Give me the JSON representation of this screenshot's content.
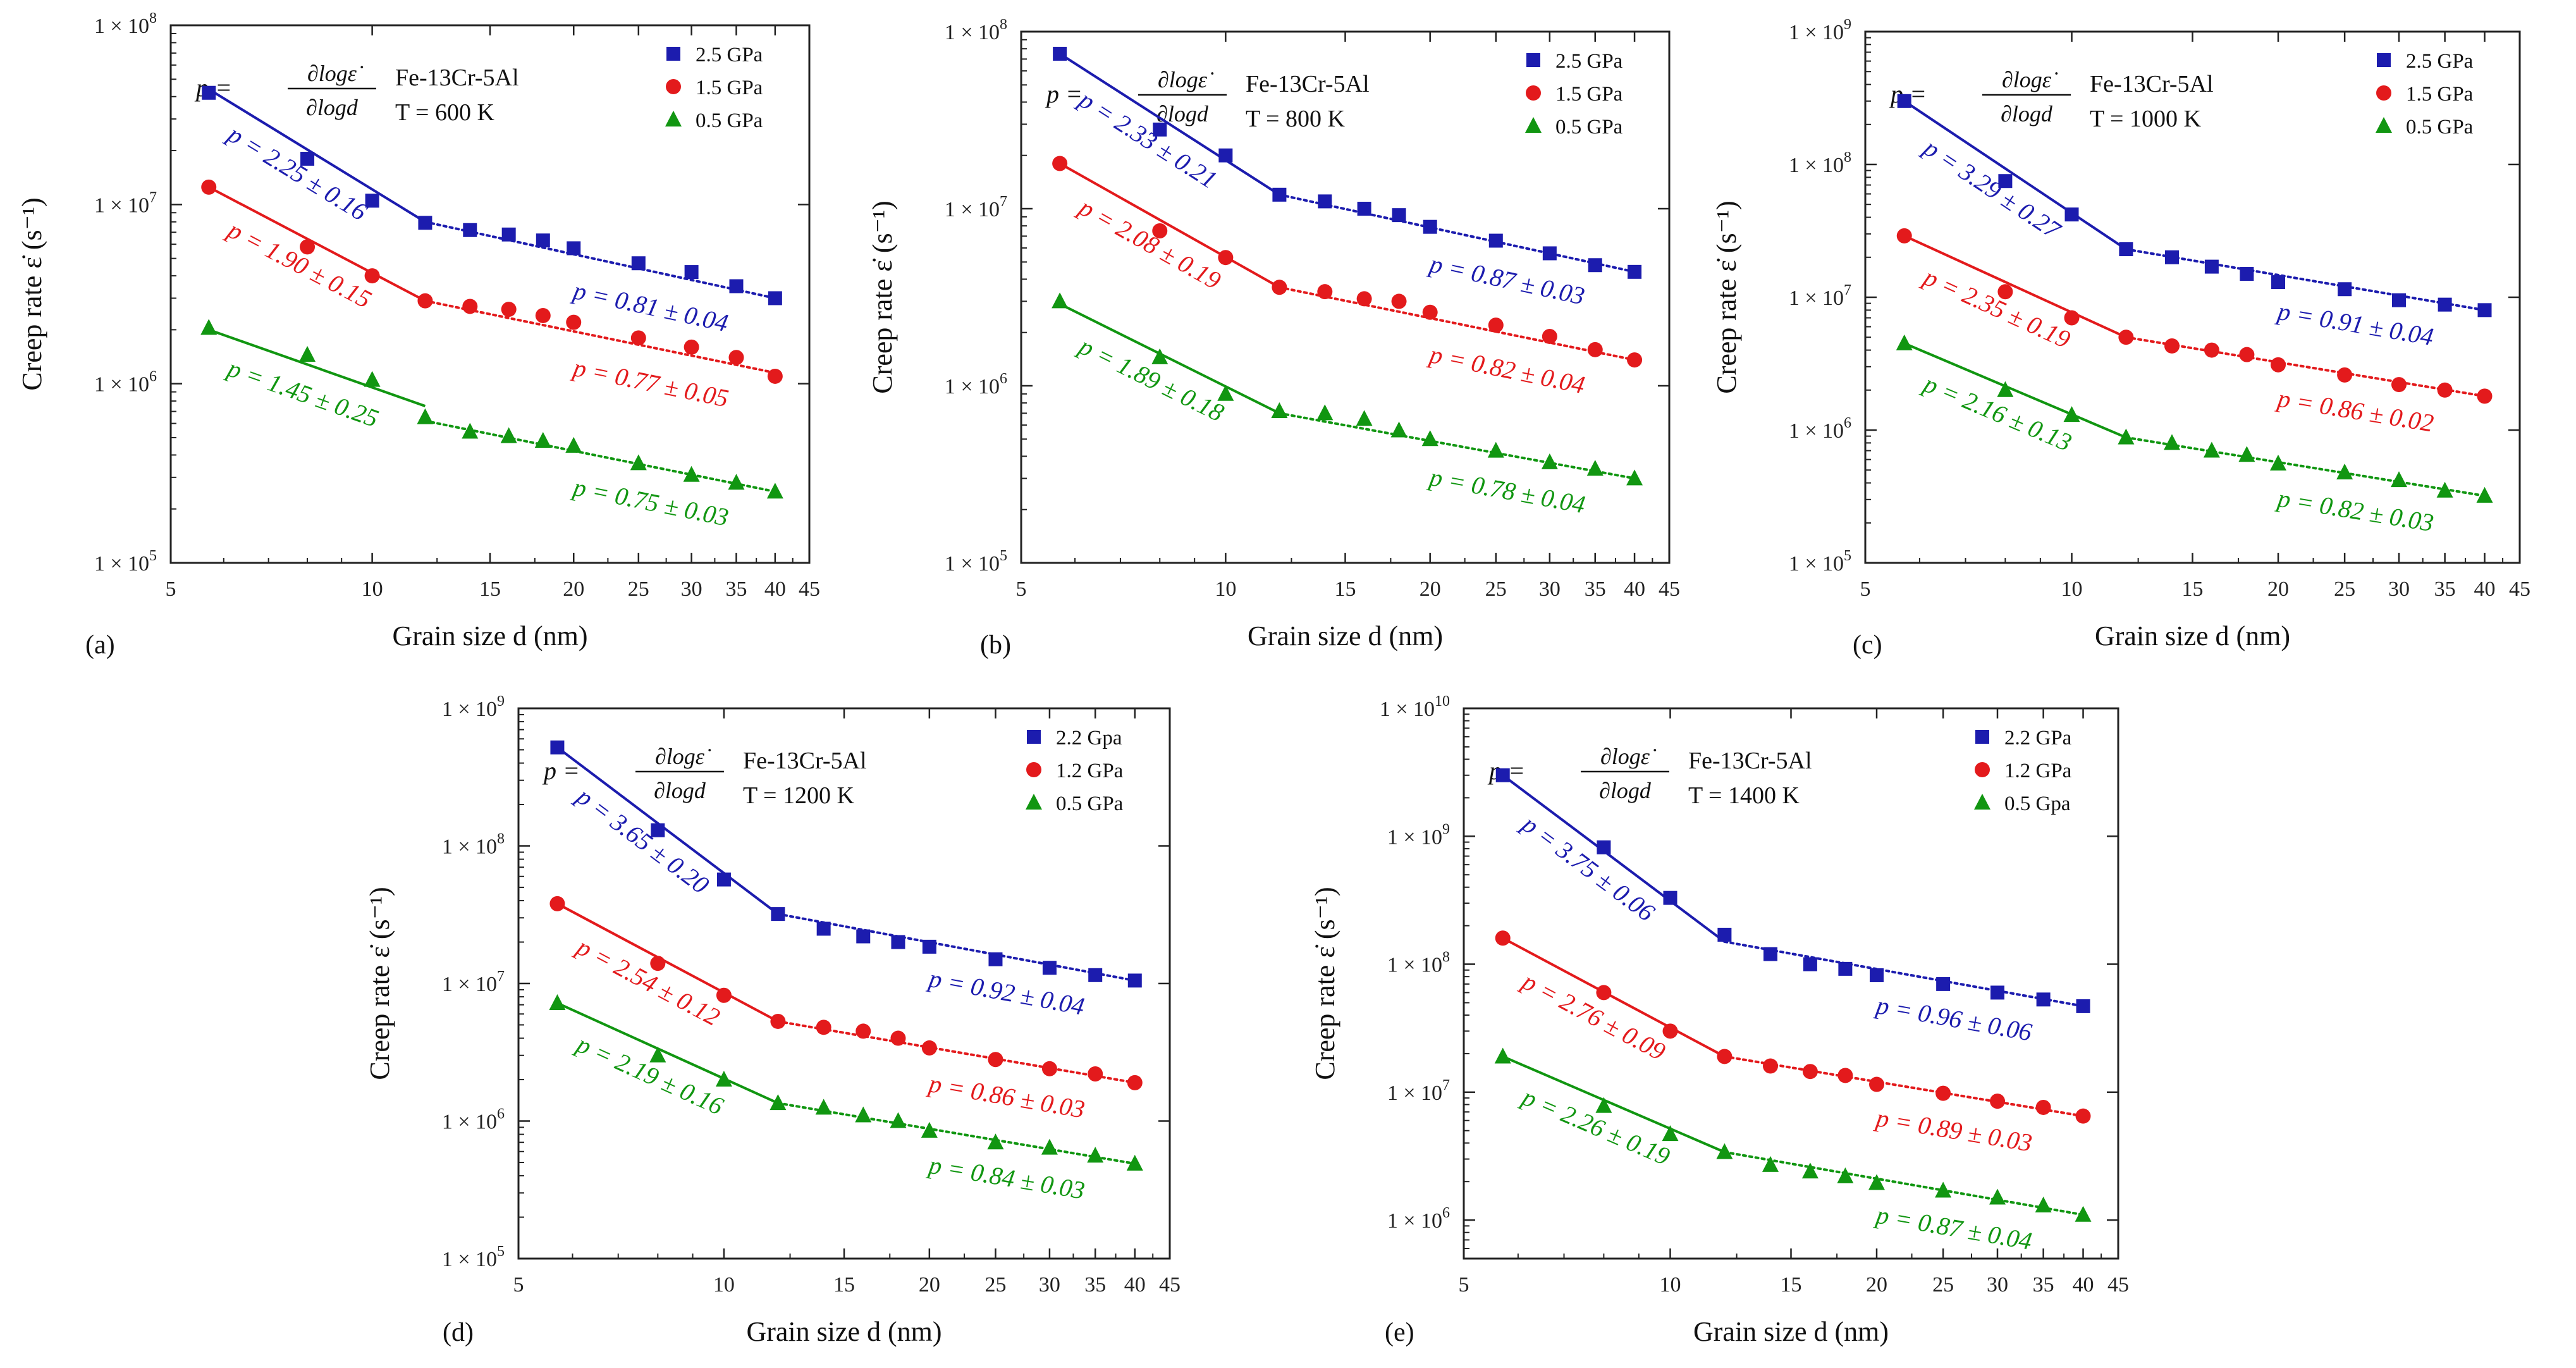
{
  "figure": {
    "x_tick_labels": [
      "5",
      "10",
      "15",
      "20",
      "25",
      "30",
      "35",
      "40",
      "45"
    ],
    "formula": {
      "lhs": "p =",
      "numerator": "∂logε̇",
      "denominator": "∂logd"
    }
  },
  "chart_data": [
    {
      "id": "a",
      "panel_label": "(a)",
      "type": "scatter",
      "xscale": "log",
      "yscale": "log",
      "xlabel": "Grain size d (nm)",
      "ylabel": "Creep rate ε̇ (s⁻¹)",
      "xlim": [
        5,
        45
      ],
      "ylim": [
        100000,
        100000000
      ],
      "y_tick_labels": [
        {
          "value": 100000,
          "exp": "5"
        },
        {
          "value": 1000000,
          "exp": "6"
        },
        {
          "value": 10000000,
          "exp": "7"
        },
        {
          "value": 100000000,
          "exp": "8"
        }
      ],
      "material": "Fe-13Cr-5Al",
      "temperature": "T = 600 K",
      "x": [
        5.7,
        8,
        10,
        12,
        14,
        16,
        18,
        20,
        25,
        30,
        35,
        40
      ],
      "series": [
        {
          "name": "2.5 GPa",
          "legend": "2.5 GPa",
          "marker": "square",
          "color": "#1c1cae",
          "values": [
            42000000,
            18000000,
            10500000,
            7900000,
            7200000,
            6800000,
            6300000,
            5700000,
            4700000,
            4200000,
            3500000,
            3000000
          ],
          "fit_steep": {
            "x": [
              5.7,
              12
            ],
            "y": [
              44000000,
              8000000
            ],
            "label": "p = 2.25 ± 0.16"
          },
          "fit_shallow": {
            "x": [
              12,
              40
            ],
            "y": [
              8000000,
              3000000
            ],
            "label": "p = 0.81 ± 0.04"
          }
        },
        {
          "name": "1.5 GPa",
          "legend": "1.5 GPa",
          "marker": "circle",
          "color": "#e31a1c",
          "values": [
            12500000,
            5800000,
            4000000,
            2900000,
            2700000,
            2600000,
            2400000,
            2200000,
            1800000,
            1600000,
            1400000,
            1100000
          ],
          "fit_steep": {
            "x": [
              5.7,
              12
            ],
            "y": [
              12500000,
              2900000
            ],
            "label": "p = 1.90 ± 0.15"
          },
          "fit_shallow": {
            "x": [
              12,
              40
            ],
            "y": [
              2900000,
              1150000
            ],
            "label": "p = 0.77 ± 0.05"
          }
        },
        {
          "name": "0.5 GPa",
          "legend": "0.5 GPa",
          "marker": "triangle",
          "color": "#119611",
          "values": [
            2050000,
            1450000,
            1050000,
            650000,
            540000,
            510000,
            480000,
            450000,
            360000,
            310000,
            280000,
            250000
          ],
          "fit_steep": {
            "x": [
              5.7,
              12
            ],
            "y": [
              2000000,
              750000
            ],
            "label": "p = 1.45 ± 0.25"
          },
          "fit_shallow": {
            "x": [
              12,
              40
            ],
            "y": [
              620000,
              250000
            ],
            "label": "p = 0.75 ± 0.03"
          }
        }
      ]
    },
    {
      "id": "b",
      "panel_label": "(b)",
      "type": "scatter",
      "xscale": "log",
      "yscale": "log",
      "xlabel": "Grain size d (nm)",
      "ylabel": "Creep rate ε̇ (s⁻¹)",
      "xlim": [
        5,
        45
      ],
      "ylim": [
        100000,
        100000000
      ],
      "y_tick_labels": [
        {
          "value": 100000,
          "exp": "5"
        },
        {
          "value": 1000000,
          "exp": "6"
        },
        {
          "value": 10000000,
          "exp": "7"
        },
        {
          "value": 100000000,
          "exp": "8"
        }
      ],
      "material": "Fe-13Cr-5Al",
      "temperature": "T = 800 K",
      "x": [
        5.7,
        8,
        10,
        12,
        14,
        16,
        18,
        20,
        25,
        30,
        35,
        40
      ],
      "series": [
        {
          "name": "2.5 GPa",
          "legend": "2.5 GPa",
          "marker": "square",
          "color": "#1c1cae",
          "values": [
            75000000,
            28000000,
            20000000,
            12000000,
            11000000,
            10000000,
            9200000,
            7900000,
            6600000,
            5600000,
            4800000,
            4400000
          ],
          "fit_steep": {
            "x": [
              5.7,
              12
            ],
            "y": [
              75000000,
              12000000
            ],
            "label": "p = 2.33 ± 0.21"
          },
          "fit_shallow": {
            "x": [
              12,
              40
            ],
            "y": [
              12000000,
              4400000
            ],
            "label": "p = 0.87 ± 0.03"
          }
        },
        {
          "name": "1.5 GPa",
          "legend": "1.5 GPa",
          "marker": "circle",
          "color": "#e31a1c",
          "values": [
            18000000,
            7500000,
            5300000,
            3600000,
            3400000,
            3100000,
            3000000,
            2600000,
            2200000,
            1900000,
            1600000,
            1400000
          ],
          "fit_steep": {
            "x": [
              5.7,
              12
            ],
            "y": [
              18000000,
              3600000
            ],
            "label": "p = 2.08 ± 0.19"
          },
          "fit_shallow": {
            "x": [
              12,
              40
            ],
            "y": [
              3600000,
              1400000
            ],
            "label": "p = 0.82 ± 0.04"
          }
        },
        {
          "name": "0.5 GPa",
          "legend": "0.5 GPa",
          "marker": "triangle",
          "color": "#119611",
          "values": [
            3000000,
            1450000,
            900000,
            720000,
            700000,
            650000,
            560000,
            500000,
            430000,
            370000,
            340000,
            300000
          ],
          "fit_steep": {
            "x": [
              5.7,
              12
            ],
            "y": [
              2900000,
              700000
            ],
            "label": "p = 1.89 ± 0.18"
          },
          "fit_shallow": {
            "x": [
              12,
              40
            ],
            "y": [
              700000,
              300000
            ],
            "label": "p = 0.78 ± 0.04"
          }
        }
      ]
    },
    {
      "id": "c",
      "panel_label": "(c)",
      "type": "scatter",
      "xscale": "log",
      "yscale": "log",
      "xlabel": "Grain size d (nm)",
      "ylabel": "Creep rate ε̇ (s⁻¹)",
      "xlim": [
        5,
        45
      ],
      "ylim": [
        100000,
        1000000000
      ],
      "y_tick_labels": [
        {
          "value": 100000,
          "exp": "5"
        },
        {
          "value": 1000000,
          "exp": "6"
        },
        {
          "value": 10000000,
          "exp": "7"
        },
        {
          "value": 100000000,
          "exp": "8"
        },
        {
          "value": 1000000000,
          "exp": "9"
        }
      ],
      "material": "Fe-13Cr-5Al",
      "temperature": "T = 1000 K",
      "x": [
        5.7,
        8,
        10,
        12,
        14,
        16,
        18,
        20,
        25,
        30,
        35,
        40
      ],
      "series": [
        {
          "name": "2.5 GPa",
          "legend": "2.5 GPa",
          "marker": "square",
          "color": "#1c1cae",
          "values": [
            300000000,
            75000000,
            42000000,
            23000000,
            20000000,
            17000000,
            15000000,
            13000000,
            11500000,
            9500000,
            8800000,
            8000000
          ],
          "fit_steep": {
            "x": [
              5.7,
              12
            ],
            "y": [
              300000000,
              23000000
            ],
            "label": "p = 3.29 ± 0.27"
          },
          "fit_shallow": {
            "x": [
              12,
              40
            ],
            "y": [
              23000000,
              8000000
            ],
            "label": "p = 0.91 ± 0.04"
          }
        },
        {
          "name": "1.5 GPa",
          "legend": "1.5 GPa",
          "marker": "circle",
          "color": "#e31a1c",
          "values": [
            29000000,
            11000000,
            7000000,
            5000000,
            4300000,
            4000000,
            3700000,
            3100000,
            2600000,
            2200000,
            2000000,
            1800000
          ],
          "fit_steep": {
            "x": [
              5.7,
              12
            ],
            "y": [
              29000000,
              5000000
            ],
            "label": "p = 2.35 ± 0.19"
          },
          "fit_shallow": {
            "x": [
              12,
              40
            ],
            "y": [
              5000000,
              1800000
            ],
            "label": "p = 0.86 ± 0.02"
          }
        },
        {
          "name": "0.5 GPa",
          "legend": "0.5 GPa",
          "marker": "triangle",
          "color": "#119611",
          "values": [
            4500000,
            2000000,
            1300000,
            880000,
            800000,
            700000,
            650000,
            560000,
            480000,
            420000,
            350000,
            320000
          ],
          "fit_steep": {
            "x": [
              5.7,
              12
            ],
            "y": [
              4500000,
              880000
            ],
            "label": "p = 2.16 ± 0.13"
          },
          "fit_shallow": {
            "x": [
              12,
              40
            ],
            "y": [
              880000,
              320000
            ],
            "label": "p = 0.82 ± 0.03"
          }
        }
      ]
    },
    {
      "id": "d",
      "panel_label": "(d)",
      "type": "scatter",
      "xscale": "log",
      "yscale": "log",
      "xlabel": "Grain size d (nm)",
      "ylabel": "Creep rate ε̇ (s⁻¹)",
      "xlim": [
        5,
        45
      ],
      "ylim": [
        100000,
        1000000000
      ],
      "y_tick_labels": [
        {
          "value": 100000,
          "exp": "5"
        },
        {
          "value": 1000000,
          "exp": "6"
        },
        {
          "value": 10000000,
          "exp": "7"
        },
        {
          "value": 100000000,
          "exp": "8"
        },
        {
          "value": 1000000000,
          "exp": "9"
        }
      ],
      "material": "Fe-13Cr-5Al",
      "temperature": "T = 1200 K",
      "x": [
        5.7,
        8,
        10,
        12,
        14,
        16,
        18,
        20,
        25,
        30,
        35,
        40
      ],
      "series": [
        {
          "name": "2.2 GPa",
          "legend": "2.2 Gpa",
          "marker": "square",
          "color": "#1c1cae",
          "values": [
            520000000,
            130000000,
            57000000,
            32000000,
            25000000,
            22000000,
            20000000,
            18500000,
            15000000,
            13000000,
            11500000,
            10500000
          ],
          "fit_steep": {
            "x": [
              5.7,
              12
            ],
            "y": [
              520000000,
              32000000
            ],
            "label": "p = 3.65 ± 0.20"
          },
          "fit_shallow": {
            "x": [
              12,
              40
            ],
            "y": [
              32000000,
              10500000
            ],
            "label": "p = 0.92 ± 0.04"
          }
        },
        {
          "name": "1.2 GPa",
          "legend": "1.2 GPa",
          "marker": "circle",
          "color": "#e31a1c",
          "values": [
            38000000,
            14000000,
            8200000,
            5300000,
            4800000,
            4500000,
            4000000,
            3400000,
            2800000,
            2400000,
            2200000,
            1900000
          ],
          "fit_steep": {
            "x": [
              5.7,
              12
            ],
            "y": [
              38000000,
              5300000
            ],
            "label": "p = 2.54 ± 0.12"
          },
          "fit_shallow": {
            "x": [
              12,
              40
            ],
            "y": [
              5300000,
              1900000
            ],
            "label": "p = 0.86 ± 0.03"
          }
        },
        {
          "name": "0.5 GPa",
          "legend": "0.5 GPa",
          "marker": "triangle",
          "color": "#119611",
          "values": [
            7200000,
            3000000,
            2000000,
            1350000,
            1250000,
            1100000,
            1000000,
            850000,
            700000,
            640000,
            560000,
            490000
          ],
          "fit_steep": {
            "x": [
              5.7,
              12
            ],
            "y": [
              7200000,
              1350000
            ],
            "label": "p = 2.19 ± 0.16"
          },
          "fit_shallow": {
            "x": [
              12,
              40
            ],
            "y": [
              1350000,
              490000
            ],
            "label": "p = 0.84 ± 0.03"
          }
        }
      ]
    },
    {
      "id": "e",
      "panel_label": "(e)",
      "type": "scatter",
      "xscale": "log",
      "yscale": "log",
      "xlabel": "Grain size d (nm)",
      "ylabel": "Creep rate ε̇ (s⁻¹)",
      "xlim": [
        5,
        45
      ],
      "ylim": [
        500000,
        10000000000
      ],
      "y_tick_labels": [
        {
          "value": 1000000,
          "exp": "6"
        },
        {
          "value": 10000000,
          "exp": "7"
        },
        {
          "value": 100000000,
          "exp": "8"
        },
        {
          "value": 1000000000,
          "exp": "9"
        },
        {
          "value": 10000000000,
          "exp": "10"
        }
      ],
      "material": "Fe-13Cr-5Al",
      "temperature": "T = 1400 K",
      "x": [
        5.7,
        8,
        10,
        12,
        14,
        16,
        18,
        20,
        25,
        30,
        35,
        40
      ],
      "series": [
        {
          "name": "2.2 GPa",
          "legend": "2.2 GPa",
          "marker": "square",
          "color": "#1c1cae",
          "values": [
            3000000000,
            820000000,
            330000000,
            170000000,
            120000000,
            100000000,
            92000000,
            82000000,
            70000000,
            60000000,
            53000000,
            47000000
          ],
          "fit_steep": {
            "x": [
              5.7,
              12
            ],
            "y": [
              3000000000,
              150000000
            ],
            "label": "p = 3.75 ± 0.06"
          },
          "fit_shallow": {
            "x": [
              12,
              40
            ],
            "y": [
              150000000,
              47000000
            ],
            "label": "p = 0.96 ± 0.06"
          }
        },
        {
          "name": "1.2 GPa",
          "legend": "1.2 GPa",
          "marker": "circle",
          "color": "#e31a1c",
          "values": [
            160000000,
            60000000,
            30000000,
            19000000,
            16000000,
            14500000,
            13500000,
            11500000,
            9800000,
            8500000,
            7600000,
            6500000
          ],
          "fit_steep": {
            "x": [
              5.7,
              12
            ],
            "y": [
              160000000,
              19000000
            ],
            "label": "p = 2.76 ± 0.09"
          },
          "fit_shallow": {
            "x": [
              12,
              40
            ],
            "y": [
              19000000,
              6500000
            ],
            "label": "p = 0.89 ± 0.03"
          }
        },
        {
          "name": "0.5 GPa",
          "legend": "0.5 Gpa",
          "marker": "triangle",
          "color": "#119611",
          "values": [
            19000000,
            7800000,
            4700000,
            3400000,
            2700000,
            2400000,
            2200000,
            1950000,
            1700000,
            1500000,
            1300000,
            1100000
          ],
          "fit_steep": {
            "x": [
              5.7,
              12
            ],
            "y": [
              19000000,
              3400000
            ],
            "label": "p = 2.26 ± 0.19"
          },
          "fit_shallow": {
            "x": [
              12,
              40
            ],
            "y": [
              3400000,
              1100000
            ],
            "label": "p = 0.87 ± 0.04"
          }
        }
      ]
    }
  ]
}
